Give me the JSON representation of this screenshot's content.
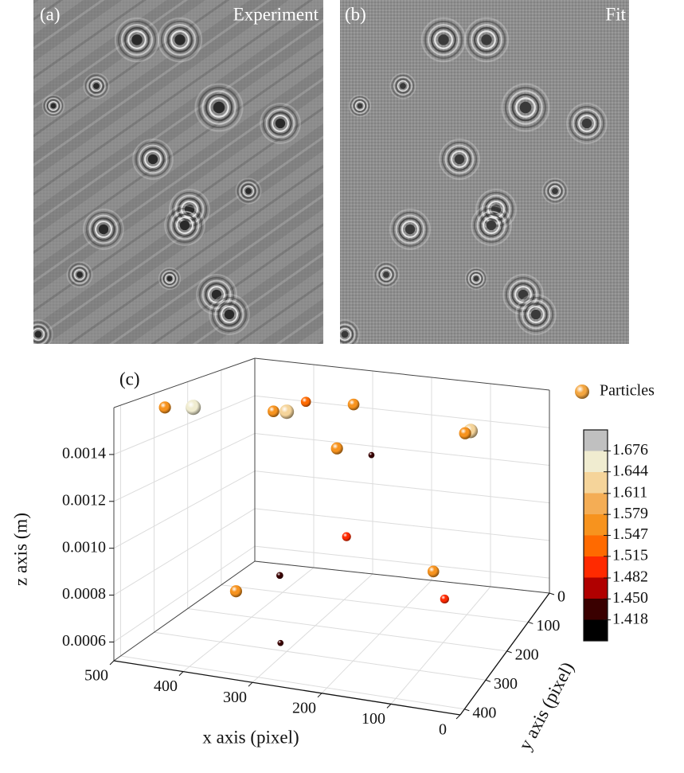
{
  "panels": [
    {
      "label": "(a)",
      "title": "Experiment"
    },
    {
      "label": "(b)",
      "title": "Fit"
    }
  ],
  "chart_data": {
    "type": "scatter3d",
    "panel_label": "(c)",
    "xlabel": "x axis (pixel)",
    "ylabel": "y axis (pixel)",
    "zlabel": "z axis (m)",
    "xlim": [
      0,
      500
    ],
    "xticks": [
      0,
      100,
      200,
      300,
      400,
      500
    ],
    "ylim": [
      0,
      420
    ],
    "yticks": [
      0,
      100,
      200,
      300,
      400
    ],
    "zlim": [
      0.00052,
      0.0016
    ],
    "zticks": [
      0.0006,
      0.0008,
      {
        "value": 0.001,
        "label": "0.0010"
      },
      0.0012,
      0.0014
    ],
    "grid": true,
    "legend": "upper right",
    "series": [
      {
        "name": "Particles",
        "color": "#f4a640",
        "x": [
          466,
          444,
          370,
          361,
          360,
          254,
          282,
          62,
          84,
          210,
          284,
          371,
          399,
          144,
          94,
          303
        ],
        "y": [
          336,
          294,
          84,
          210,
          168,
          168,
          42,
          210,
          126,
          336,
          126,
          168,
          252,
          126,
          210,
          315
        ],
        "z": [
          0.001572,
          0.001558,
          0.001477,
          0.001522,
          0.001492,
          0.001569,
          0.0012,
          0.00154,
          0.001472,
          0.001503,
          0.000872,
          0.000695,
          0.0007,
          0.000753,
          0.000742,
          0.000574
        ],
        "n": [
          1.57,
          1.65,
          1.52,
          1.56,
          1.63,
          1.56,
          1.42,
          1.57,
          1.63,
          1.57,
          1.49,
          1.44,
          1.57,
          1.56,
          1.49,
          1.42
        ]
      }
    ],
    "colorbar": {
      "clim": [
        1.386,
        1.708
      ],
      "ticks": [
        {
          "value": 1.418,
          "label": "1.418"
        },
        {
          "value": 1.45,
          "label": "1.450"
        },
        {
          "value": 1.482,
          "label": "1.482"
        },
        {
          "value": 1.515,
          "label": "1.515"
        },
        {
          "value": 1.547,
          "label": "1.547"
        },
        {
          "value": 1.579,
          "label": "1.579"
        },
        {
          "value": 1.611,
          "label": "1.611"
        },
        {
          "value": 1.644,
          "label": "1.644"
        },
        {
          "value": 1.676,
          "label": "1.676"
        }
      ],
      "colors": [
        "#000000",
        "#3a0000",
        "#b00000",
        "#ff2a00",
        "#ff6a00",
        "#f7931e",
        "#f4ad55",
        "#f5d49a",
        "#f0ecd0",
        "#c0c0c0"
      ]
    }
  }
}
